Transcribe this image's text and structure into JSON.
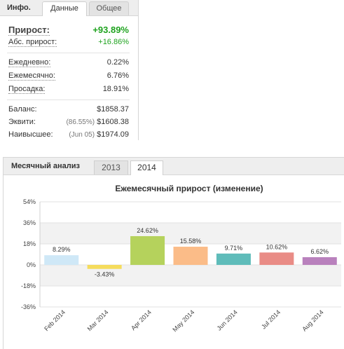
{
  "info": {
    "header_label": "Инфо.",
    "tabs": [
      {
        "label": "Данные",
        "active": true
      },
      {
        "label": "Общее",
        "active": false
      }
    ],
    "gain": {
      "label": "Прирост:",
      "value": "+93.89%"
    },
    "abs_gain": {
      "label": "Абс. прирост:",
      "value": "+16.86%"
    },
    "daily": {
      "label": "Ежедневно:",
      "value": "0.22%"
    },
    "monthly": {
      "label": "Ежемесячно:",
      "value": "6.76%"
    },
    "drawdown": {
      "label": "Просадка:",
      "value": "18.91%"
    },
    "balance": {
      "label": "Баланс:",
      "value": "$1858.37"
    },
    "equity": {
      "label": "Эквити:",
      "note": "(86.55%)",
      "value": "$1608.38"
    },
    "highest": {
      "label": "Наивысшее:",
      "note": "(Jun 05)",
      "value": "$1974.09"
    }
  },
  "monthly_analysis": {
    "label": "Месячный анализ",
    "tabs": [
      {
        "label": "2013",
        "active": false
      },
      {
        "label": "2014",
        "active": true
      }
    ]
  },
  "colors": {
    "positive": "#1fa31f",
    "bars": [
      "#cfe8f7",
      "#f5dc5c",
      "#b5d25c",
      "#fbbc88",
      "#5fbcba",
      "#e98c86",
      "#b981bd"
    ]
  },
  "chart_data": {
    "type": "bar",
    "title": "Ежемесячный прирост (изменение)",
    "categories": [
      "Feb 2014",
      "Mar 2014",
      "Apr 2014",
      "May 2014",
      "Jun 2014",
      "Jul 2014",
      "Aug 2014"
    ],
    "values": [
      8.29,
      -3.43,
      24.62,
      15.58,
      9.71,
      10.62,
      6.62
    ],
    "data_labels": [
      "8.29%",
      "-3.43%",
      "24.62%",
      "15.58%",
      "9.71%",
      "10.62%",
      "6.62%"
    ],
    "y_ticks": [
      54,
      36,
      18,
      0,
      -18,
      -36
    ],
    "y_tick_labels": [
      "54%",
      "36%",
      "18%",
      "0%",
      "-18%",
      "-36%"
    ],
    "ylim": [
      -36,
      54
    ],
    "grid": true,
    "legend": "none",
    "xlabel": "",
    "ylabel": ""
  }
}
